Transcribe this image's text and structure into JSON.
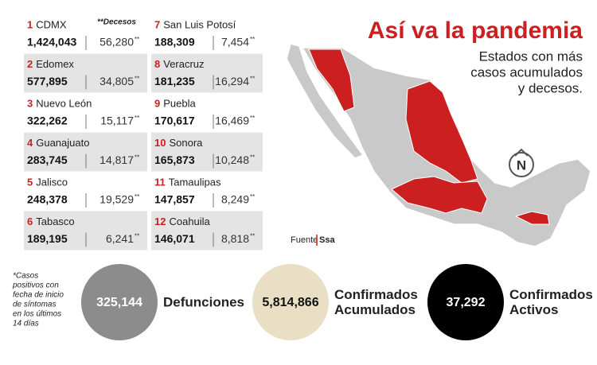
{
  "header": {
    "title": "Así va la pandemia",
    "subtitle": [
      "Estados con más",
      "casos acumulados",
      "y decesos."
    ]
  },
  "table": {
    "deaths_header": "**Decesos",
    "death_mark": "**",
    "rows": [
      {
        "rank": "1",
        "state": "CDMX",
        "cases": "1,424,043",
        "deaths": "56,280"
      },
      {
        "rank": "2",
        "state": "Edomex",
        "cases": "577,895",
        "deaths": "34,805"
      },
      {
        "rank": "3",
        "state": "Nuevo León",
        "cases": "322,262",
        "deaths": "15,117"
      },
      {
        "rank": "4",
        "state": "Guanajuato",
        "cases": "283,745",
        "deaths": "14,817"
      },
      {
        "rank": "5",
        "state": "Jalisco",
        "cases": "248,378",
        "deaths": "19,529"
      },
      {
        "rank": "6",
        "state": "Tabasco",
        "cases": "189,195",
        "deaths": "6,241"
      },
      {
        "rank": "7",
        "state": "San Luis Potosí",
        "cases": "188,309",
        "deaths": "7,454"
      },
      {
        "rank": "8",
        "state": "Veracruz",
        "cases": "181,235",
        "deaths": "16,294"
      },
      {
        "rank": "9",
        "state": "Puebla",
        "cases": "170,617",
        "deaths": "16,469"
      },
      {
        "rank": "10",
        "state": "Sonora",
        "cases": "165,873",
        "deaths": "10,248"
      },
      {
        "rank": "11",
        "state": "Tamaulipas",
        "cases": "147,857",
        "deaths": "8,249"
      },
      {
        "rank": "12",
        "state": "Coahuila",
        "cases": "146,071",
        "deaths": "8,818"
      }
    ]
  },
  "source": {
    "label": "Fuente",
    "name": "Ssa"
  },
  "map": {
    "compass": "N"
  },
  "footnote": [
    "*Casos",
    "positivos con",
    "fecha de inicio",
    "de síntomas",
    "en los últimos",
    "14 días"
  ],
  "summary": [
    {
      "value": "325,144",
      "label": [
        "Defunciones"
      ]
    },
    {
      "value": "5,814,866",
      "label": [
        "Confirmados",
        "Acumulados"
      ]
    },
    {
      "value": "37,292",
      "label": [
        "Confirmados",
        "Activos"
      ]
    }
  ]
}
